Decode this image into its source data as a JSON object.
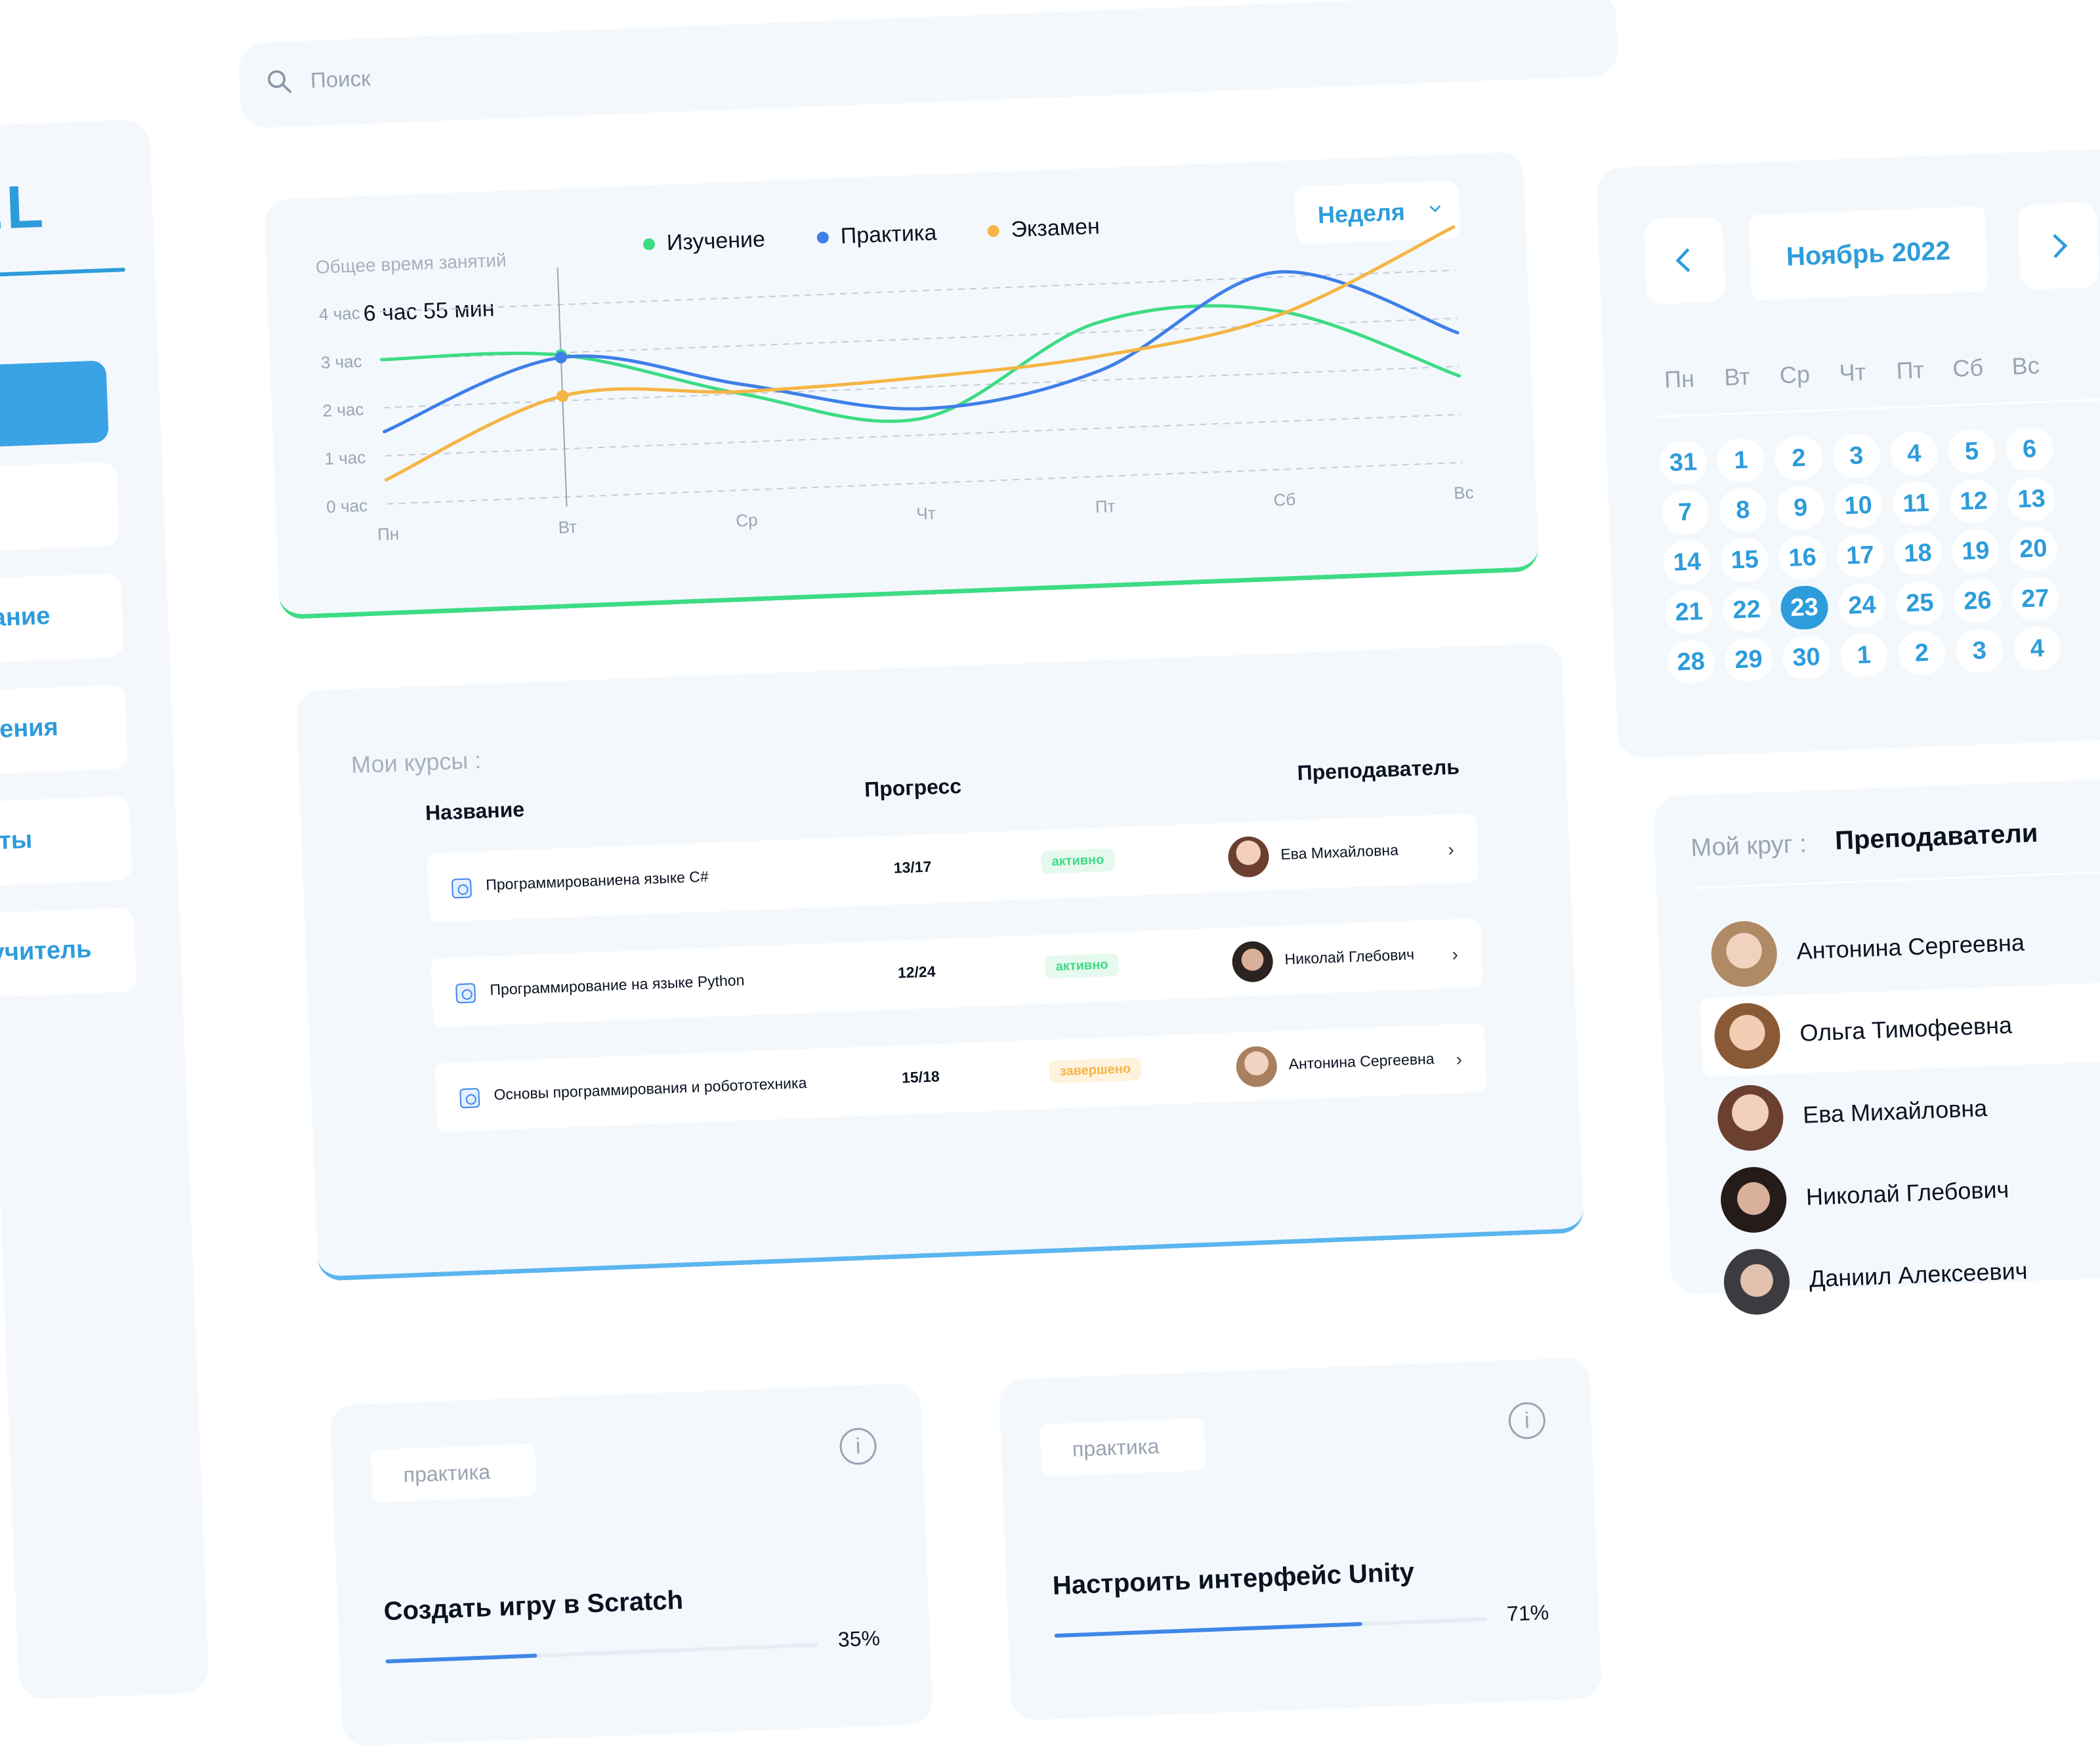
{
  "sidebar": {
    "logo": "EL",
    "items": [
      {
        "label": "сание"
      },
      {
        "label": "жения"
      },
      {
        "label": "кты"
      },
      {
        "label": "учитель"
      }
    ]
  },
  "search": {
    "placeholder": "Поиск"
  },
  "activity": {
    "title": "Общее время занятий",
    "total": "6 час 55 мин",
    "period": "Неделя",
    "legend": [
      {
        "name": "Изучение",
        "color": "#3ddc84"
      },
      {
        "name": "Практика",
        "color": "#3f7fe8"
      },
      {
        "name": "Экзамен",
        "color": "#f5b544"
      }
    ]
  },
  "chart_data": {
    "type": "line",
    "title": "Общее время занятий",
    "x": [
      "Пн",
      "Вт",
      "Ср",
      "Чт",
      "Пт",
      "Сб",
      "Вс"
    ],
    "y_ticks": [
      "0 час",
      "1 час",
      "2 час",
      "3 час",
      "4 час"
    ],
    "ylim": [
      0,
      4.5
    ],
    "series": [
      {
        "name": "Изучение",
        "color": "#3ddc84",
        "values": [
          3.0,
          2.95,
          2.0,
          1.35,
          3.2,
          3.3,
          1.8
        ]
      },
      {
        "name": "Практика",
        "color": "#3f7fe8",
        "values": [
          1.5,
          2.9,
          2.2,
          1.55,
          2.2,
          4.1,
          2.7
        ]
      },
      {
        "name": "Экзамен",
        "color": "#f5b544",
        "values": [
          0.5,
          2.1,
          2.05,
          2.2,
          2.5,
          3.2,
          4.9
        ]
      }
    ],
    "highlight": {
      "x": "Вт"
    }
  },
  "courses": {
    "heading": "Мои курсы :",
    "headers": {
      "name": "Название",
      "progress": "Прогресс",
      "teacher": "Преподаватель"
    },
    "rows": [
      {
        "name": "Программированиена языке C#",
        "progress": "13/17",
        "status": "активно",
        "status_color": "#3ddc84",
        "teacher": "Ева Михайловна"
      },
      {
        "name": "Программирование на языке Python",
        "progress": "12/24",
        "status": "активно",
        "status_color": "#3ddc84",
        "teacher": "Николай Глебович"
      },
      {
        "name": "Основы программирования и робототехника",
        "progress": "15/18",
        "status": "завершено",
        "status_color": "#f5b544",
        "teacher": "Антонина Сергеевна"
      }
    ]
  },
  "tasks": [
    {
      "tag": "практика",
      "title": "Создать игру в Scratch",
      "progress_label": "35%",
      "progress": 0.35
    },
    {
      "tag": "практика",
      "title": "Настроить интерфейс Unity",
      "progress_label": "71%",
      "progress": 0.71
    }
  ],
  "calendar": {
    "month": "Ноябрь 2022",
    "weekdays": [
      "Пн",
      "Вт",
      "Ср",
      "Чт",
      "Пт",
      "Сб",
      "Вс"
    ],
    "weeks": [
      [
        "31",
        "1",
        "2",
        "3",
        "4",
        "5",
        "6"
      ],
      [
        "7",
        "8",
        "9",
        "10",
        "11",
        "12",
        "13"
      ],
      [
        "14",
        "15",
        "16",
        "17",
        "18",
        "19",
        "20"
      ],
      [
        "21",
        "22",
        "23",
        "24",
        "25",
        "26",
        "27"
      ],
      [
        "28",
        "29",
        "30",
        "1",
        "2",
        "3",
        "4"
      ]
    ],
    "selected": "23"
  },
  "circle": {
    "label": "Мой круг :",
    "filter": "Преподаватели",
    "people": [
      {
        "name": "Антонина Сергеевна"
      },
      {
        "name": "Ольга Тимофеевна"
      },
      {
        "name": "Ева Михайловна"
      },
      {
        "name": "Николай Глебович"
      },
      {
        "name": "Даниил Алексеевич"
      }
    ]
  }
}
